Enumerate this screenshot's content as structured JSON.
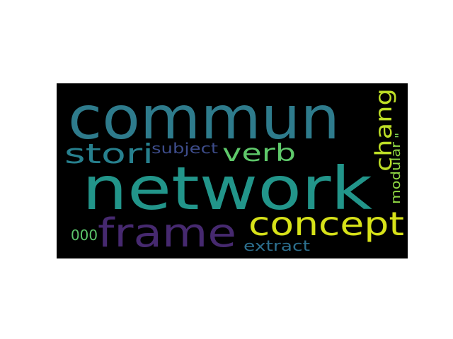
{
  "figure": {
    "background": "#ffffff",
    "cloud_background": "#000000"
  },
  "words": [
    {
      "text": "commun",
      "color": "#2e7b8c"
    },
    {
      "text": "network",
      "color": "#22958a"
    },
    {
      "text": "frame",
      "color": "#46296f"
    },
    {
      "text": "concept",
      "color": "#d7e219"
    },
    {
      "text": "stori",
      "color": "#27808e"
    },
    {
      "text": "verb",
      "color": "#5ec86a"
    },
    {
      "text": "chang",
      "color": "#bdde26"
    },
    {
      "text": "subject",
      "color": "#3d4c8a"
    },
    {
      "text": "modular",
      "color": "#8fd744"
    },
    {
      "text": "000",
      "color": "#5cc56b"
    },
    {
      "text": "extract",
      "color": "#2c6f8e"
    },
    {
      "text": "\"",
      "color": "#7ad151"
    }
  ]
}
